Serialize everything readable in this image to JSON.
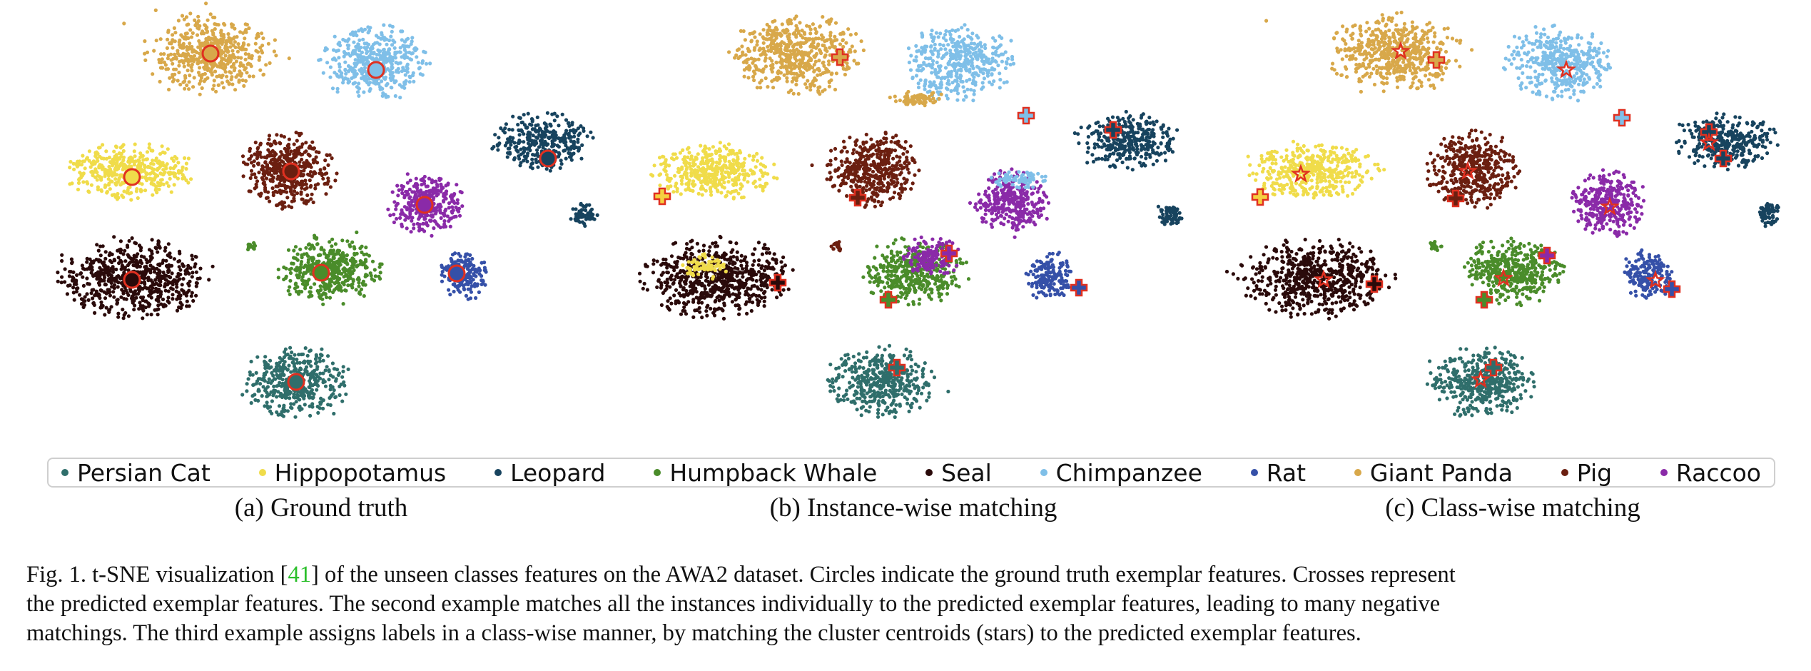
{
  "legend": {
    "items": [
      {
        "label": "Persian Cat",
        "color": "#2f6e6b"
      },
      {
        "label": "Hippopotamus",
        "color": "#f0dc4a"
      },
      {
        "label": "Leopard",
        "color": "#17435e"
      },
      {
        "label": "Humpback Whale",
        "color": "#4a8c2a"
      },
      {
        "label": "Seal",
        "color": "#2a0a0a"
      },
      {
        "label": "Chimpanzee",
        "color": "#7fbfe8"
      },
      {
        "label": "Rat",
        "color": "#3550a8"
      },
      {
        "label": "Giant Panda",
        "color": "#d8a84a"
      },
      {
        "label": "Pig",
        "color": "#6b1f10"
      },
      {
        "label": "Raccoo",
        "color": "#8a2aa8"
      }
    ]
  },
  "subcaptions": [
    "(a) Ground truth",
    "(b) Instance-wise matching",
    "(c) Class-wise matching"
  ],
  "caption": {
    "prefix": "Fig. 1.  t-SNE visualization [",
    "citation": "41",
    "line1_rest": "] of the unseen classes features on the AWA2 dataset. Circles indicate the ground truth exemplar features. Crosses represent",
    "line2": "the predicted exemplar features. The second example matches all the instances individually to the predicted exemplar features, leading to many negative",
    "line3": "matchings. The third example assigns labels in a class-wise manner, by matching the cluster centroids (stars) to the predicted exemplar features."
  },
  "marker_colors": {
    "outline": "#e03020",
    "cross_fill_light": "#f5d040"
  }
}
